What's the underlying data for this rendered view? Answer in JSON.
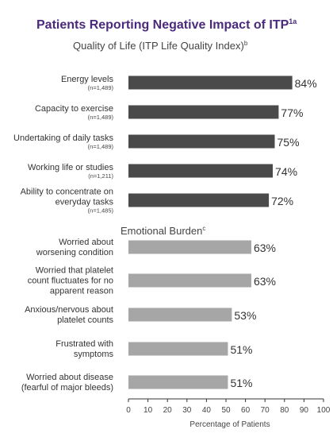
{
  "chart_data": {
    "type": "bar",
    "orientation": "horizontal",
    "title": "Patients Reporting Negative Impact of ITP",
    "title_superscript": "1a",
    "xlabel": "Percentage of Patients",
    "xlim": [
      0,
      100
    ],
    "xticks": [
      "0",
      "10",
      "20",
      "30",
      "40",
      "50",
      "60",
      "70",
      "80",
      "90",
      "100"
    ],
    "value_suffix": "%",
    "grid": false,
    "colors": {
      "title": "#4b2a7b",
      "section_1": "#4a4a4a",
      "section_2": "#a6a6a6",
      "text": "#333333"
    },
    "sections": [
      {
        "name": "Quality of Life (ITP Life Quality Index)",
        "superscript": "b",
        "categories": [
          {
            "lines": [
              "Energy levels"
            ],
            "n": "(n=1,489)",
            "value": 84
          },
          {
            "lines": [
              "Capacity to exercise"
            ],
            "n": "(n=1,489)",
            "value": 77
          },
          {
            "lines": [
              "Undertaking of daily tasks"
            ],
            "n": "(n=1,489)",
            "value": 75
          },
          {
            "lines": [
              "Working life or studies"
            ],
            "n": "(n=1,211)",
            "value": 74
          },
          {
            "lines": [
              "Ability to concentrate on",
              "everyday tasks"
            ],
            "n": "(n=1,485)",
            "value": 72
          }
        ]
      },
      {
        "name": "Emotional Burden",
        "superscript": "c",
        "categories": [
          {
            "lines": [
              "Worried about",
              "worsening condition"
            ],
            "n": "",
            "value": 63
          },
          {
            "lines": [
              "Worried that platelet",
              "count fluctuates for no",
              "apparent reason"
            ],
            "n": "",
            "value": 63
          },
          {
            "lines": [
              "Anxious/nervous about",
              "platelet counts"
            ],
            "n": "",
            "value": 53
          },
          {
            "lines": [
              "Frustrated with",
              "symptoms"
            ],
            "n": "",
            "value": 51
          },
          {
            "lines": [
              "Worried about disease",
              "(fearful of major bleeds)"
            ],
            "n": "",
            "value": 51
          }
        ]
      }
    ]
  }
}
